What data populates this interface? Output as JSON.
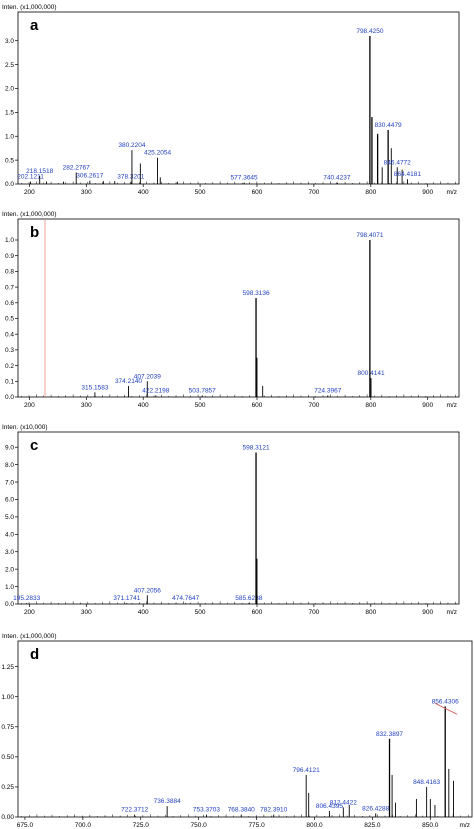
{
  "chart_data": [
    {
      "type": "bar",
      "panel_label": "a",
      "intensity_label": "Inten. (x1,000,000)",
      "xlabel": "m/z",
      "xlim": [
        180,
        955
      ],
      "ylim": [
        0,
        3.35
      ],
      "xticks": [
        "200",
        "300",
        "400",
        "500",
        "600",
        "700",
        "800",
        "900"
      ],
      "yticks": [
        "0.0",
        "0.5",
        "1.0",
        "1.5",
        "2.0",
        "2.5",
        "3.0"
      ],
      "peaks": [
        {
          "mz": 202.1211,
          "intensity": 0.05,
          "label": "202.1211"
        },
        {
          "mz": 218.1518,
          "intensity": 0.17,
          "label": "218.1518"
        },
        {
          "mz": 230.0,
          "intensity": 0.05
        },
        {
          "mz": 260.0,
          "intensity": 0.05
        },
        {
          "mz": 282.2767,
          "intensity": 0.24,
          "label": "282.2767"
        },
        {
          "mz": 306.2617,
          "intensity": 0.07,
          "label": "306.2617"
        },
        {
          "mz": 330.0,
          "intensity": 0.06
        },
        {
          "mz": 350.0,
          "intensity": 0.06
        },
        {
          "mz": 378.3201,
          "intensity": 0.05,
          "label": "378.3201"
        },
        {
          "mz": 380.2204,
          "intensity": 0.71,
          "label": "380.2204"
        },
        {
          "mz": 395.0,
          "intensity": 0.43
        },
        {
          "mz": 425.2054,
          "intensity": 0.55,
          "label": "425.2054"
        },
        {
          "mz": 430.0,
          "intensity": 0.14
        },
        {
          "mz": 460.0,
          "intensity": 0.05
        },
        {
          "mz": 577.3645,
          "intensity": 0.03,
          "label": "577.3645"
        },
        {
          "mz": 740.4237,
          "intensity": 0.03,
          "label": "740.4237"
        },
        {
          "mz": 798.425,
          "intensity": 3.1,
          "label": "798.4250"
        },
        {
          "mz": 802.0,
          "intensity": 1.4
        },
        {
          "mz": 812.0,
          "intensity": 1.05
        },
        {
          "mz": 820.0,
          "intensity": 0.35
        },
        {
          "mz": 830.4479,
          "intensity": 1.13,
          "label": "830.4479"
        },
        {
          "mz": 836.0,
          "intensity": 0.75
        },
        {
          "mz": 846.4772,
          "intensity": 0.35,
          "label": "846.4772"
        },
        {
          "mz": 855.0,
          "intensity": 0.3
        },
        {
          "mz": 864.4181,
          "intensity": 0.1,
          "label": "864.4181"
        }
      ]
    },
    {
      "type": "bar",
      "panel_label": "b",
      "intensity_label": "Inten. (x1,000,000)",
      "xlabel": "m/z",
      "xlim": [
        180,
        955
      ],
      "ylim": [
        0,
        1.07
      ],
      "xticks": [
        "200",
        "300",
        "400",
        "500",
        "600",
        "700",
        "800",
        "900"
      ],
      "yticks": [
        "0.0",
        "0.1",
        "0.2",
        "0.3",
        "0.4",
        "0.5",
        "0.6",
        "0.7",
        "0.8",
        "0.9",
        "1.0"
      ],
      "peaks": [
        {
          "mz": 315.1583,
          "intensity": 0.03,
          "label": "315.1583"
        },
        {
          "mz": 374.214,
          "intensity": 0.07,
          "label": "374.2140"
        },
        {
          "mz": 407.2039,
          "intensity": 0.1,
          "label": "407.2039"
        },
        {
          "mz": 422.2198,
          "intensity": 0.01,
          "label": "422.2198"
        },
        {
          "mz": 503.7857,
          "intensity": 0.01,
          "label": "503.7857"
        },
        {
          "mz": 598.3136,
          "intensity": 0.63,
          "label": "598.3136"
        },
        {
          "mz": 600.0,
          "intensity": 0.25
        },
        {
          "mz": 610.0,
          "intensity": 0.07
        },
        {
          "mz": 724.3967,
          "intensity": 0.01,
          "label": "724.3967"
        },
        {
          "mz": 798.4071,
          "intensity": 1.0,
          "label": "798.4071"
        },
        {
          "mz": 800.4141,
          "intensity": 0.12,
          "label": "800.4141"
        }
      ]
    },
    {
      "type": "bar",
      "panel_label": "c",
      "intensity_label": "Inten. (x10,000)",
      "xlabel": "m/z",
      "xlim": [
        180,
        955
      ],
      "ylim": [
        0,
        9.3
      ],
      "xticks": [
        "200",
        "300",
        "400",
        "500",
        "600",
        "700",
        "800",
        "900"
      ],
      "yticks": [
        "0.0",
        "1.0",
        "2.0",
        "3.0",
        "4.0",
        "5.0",
        "6.0",
        "7.0",
        "8.0",
        "9.0"
      ],
      "peaks": [
        {
          "mz": 195.2833,
          "intensity": 0.05,
          "label": "195.2833"
        },
        {
          "mz": 371.1741,
          "intensity": 0.05,
          "label": "371.1741"
        },
        {
          "mz": 407.2056,
          "intensity": 0.5,
          "label": "407.2056"
        },
        {
          "mz": 474.7647,
          "intensity": 0.05,
          "label": "474.7647"
        },
        {
          "mz": 585.6288,
          "intensity": 0.05,
          "label": "585.6288"
        },
        {
          "mz": 598.3121,
          "intensity": 8.7,
          "label": "598.3121"
        },
        {
          "mz": 600.0,
          "intensity": 2.6
        }
      ]
    },
    {
      "type": "bar",
      "panel_label": "d",
      "intensity_label": "Inten. (x1,000,000)",
      "xlabel": "m/z",
      "xlim": [
        672,
        868
      ],
      "ylim": [
        0,
        1.38
      ],
      "xticks": [
        "675.0",
        "700.0",
        "725.0",
        "750.0",
        "775.0",
        "800.0",
        "825.0",
        "850.0"
      ],
      "yticks": [
        "0.00",
        "0.25",
        "0.50",
        "0.75",
        "1.00",
        "1.25"
      ],
      "peaks": [
        {
          "mz": 722.3712,
          "intensity": 0.02,
          "label": "722.3712"
        },
        {
          "mz": 736.3884,
          "intensity": 0.09,
          "label": "736.3884"
        },
        {
          "mz": 753.3703,
          "intensity": 0.02,
          "label": "753.3703"
        },
        {
          "mz": 768.384,
          "intensity": 0.02,
          "label": "768.3840"
        },
        {
          "mz": 782.391,
          "intensity": 0.02,
          "label": "782.3910"
        },
        {
          "mz": 796.4121,
          "intensity": 0.35,
          "label": "796.4121"
        },
        {
          "mz": 797.5,
          "intensity": 0.2
        },
        {
          "mz": 806.4395,
          "intensity": 0.05,
          "label": "806.4395"
        },
        {
          "mz": 812.4422,
          "intensity": 0.08,
          "label": "812.4422"
        },
        {
          "mz": 815.0,
          "intensity": 0.1
        },
        {
          "mz": 826.4288,
          "intensity": 0.03,
          "label": "826.4288"
        },
        {
          "mz": 832.3897,
          "intensity": 0.65,
          "label": "832.3897"
        },
        {
          "mz": 833.5,
          "intensity": 0.35
        },
        {
          "mz": 835.0,
          "intensity": 0.12
        },
        {
          "mz": 844.0,
          "intensity": 0.15
        },
        {
          "mz": 848.4163,
          "intensity": 0.25,
          "label": "848.4163"
        },
        {
          "mz": 850.0,
          "intensity": 0.15
        },
        {
          "mz": 852.0,
          "intensity": 0.1
        },
        {
          "mz": 856.4306,
          "intensity": 0.92,
          "label": "856.4306"
        },
        {
          "mz": 858.0,
          "intensity": 0.4
        },
        {
          "mz": 860.0,
          "intensity": 0.3
        }
      ]
    }
  ]
}
